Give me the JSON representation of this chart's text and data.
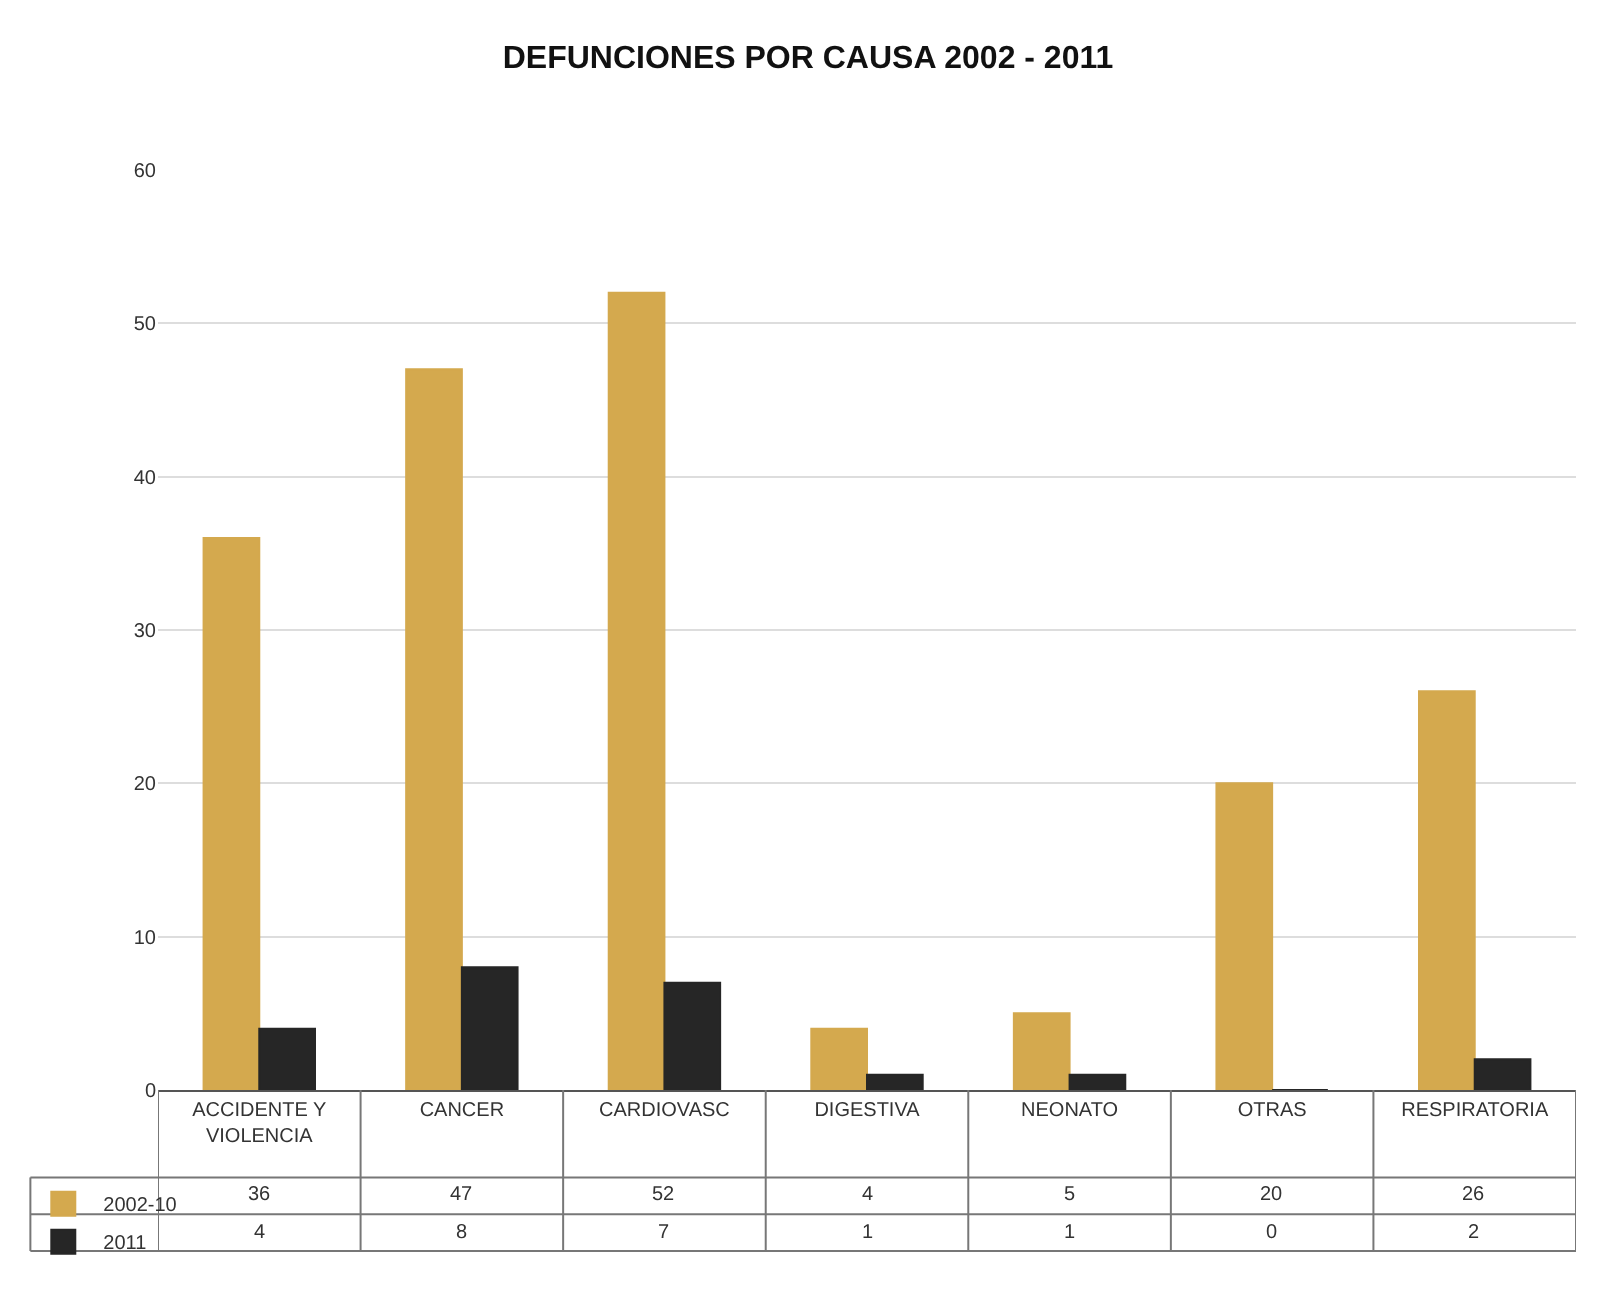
{
  "chart_data": {
    "type": "bar",
    "title": "DEFUNCIONES POR CAUSA 2002 - 2011",
    "categories": [
      "ACCIDENTE Y VIOLENCIA",
      "CANCER",
      "CARDIOVASC",
      "DIGESTIVA",
      "NEONATO",
      "OTRAS",
      "RESPIRATORIA"
    ],
    "series": [
      {
        "name": "2002-10",
        "color": "#d4a94e",
        "values": [
          36,
          47,
          52,
          4,
          5,
          20,
          26
        ]
      },
      {
        "name": "2011",
        "color": "#262626",
        "values": [
          4,
          8,
          7,
          1,
          1,
          0,
          2
        ]
      }
    ],
    "ylim": [
      0,
      60
    ],
    "yticks": [
      0,
      10,
      20,
      30,
      40,
      50,
      60
    ],
    "grid": "y",
    "legend": "bottom left",
    "data_labels": true
  }
}
